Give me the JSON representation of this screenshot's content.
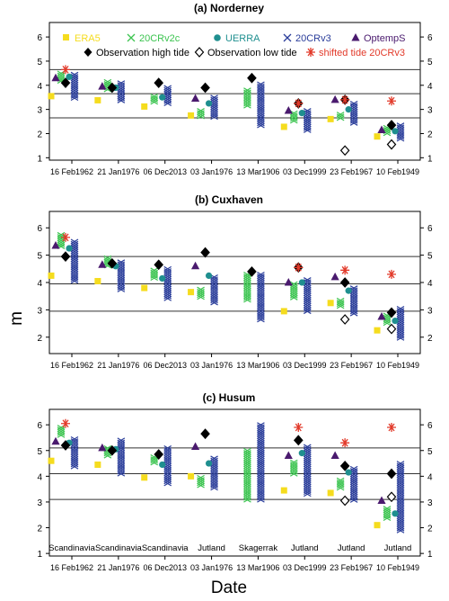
{
  "figure": {
    "ylabel": "m",
    "xlabel": "Date",
    "legend": [
      {
        "label": "ERA5",
        "color": "#f5dc1e",
        "marker": "square"
      },
      {
        "label": "20CRv2c",
        "color": "#3cc450",
        "marker": "x"
      },
      {
        "label": "UERRA",
        "color": "#1f8f8f",
        "marker": "circle"
      },
      {
        "label": "20CRv3",
        "color": "#2a3d9a",
        "marker": "x"
      },
      {
        "label": "OptempS",
        "color": "#4a1a6e",
        "marker": "triangle"
      },
      {
        "label": "Observation high tide",
        "color": "#000000",
        "marker": "diamond-filled"
      },
      {
        "label": "Observation low tide",
        "color": "#000000",
        "marker": "diamond-open"
      },
      {
        "label": "shifted tide 20CRv3",
        "color": "#e23a2a",
        "marker": "asterisk"
      }
    ],
    "categories": [
      "16 Feb1962",
      "21 Jan1976",
      "06 Dec2013",
      "03 Jan1976",
      "13 Mar1906",
      "03 Dec1999",
      "23 Feb1967",
      "10 Feb1949"
    ],
    "storm_tracks": [
      "Scandinavia",
      "Scandinavia",
      "Scandinavia",
      "Jutland",
      "Skagerrak",
      "Jutland",
      "Jutland",
      "Jutland"
    ]
  },
  "chart_data": [
    {
      "type": "scatter",
      "title": "(a) Norderney",
      "ylim": [
        0.9,
        6.6
      ],
      "yticks": [
        1,
        2,
        3,
        4,
        5,
        6
      ],
      "hlines": [
        2.65,
        3.65,
        4.65
      ],
      "series": {
        "era5": [
          3.55,
          3.38,
          3.12,
          2.75,
          null,
          2.28,
          2.6,
          1.88
        ],
        "v2c": [
          [
            4.15,
            4.5
          ],
          [
            3.75,
            4.15
          ],
          [
            3.3,
            3.55
          ],
          [
            2.7,
            2.95
          ],
          [
            3.1,
            3.8
          ],
          [
            2.45,
            2.85
          ],
          [
            2.6,
            2.8
          ],
          [
            2.0,
            2.25
          ]
        ],
        "uerra": [
          4.35,
          3.9,
          3.5,
          3.25,
          null,
          2.85,
          3.0,
          2.1
        ],
        "v3": [
          [
            3.45,
            4.45
          ],
          [
            3.3,
            4.1
          ],
          [
            3.2,
            3.9
          ],
          [
            2.6,
            3.5
          ],
          [
            2.3,
            4.05
          ],
          [
            2.1,
            2.95
          ],
          [
            2.4,
            3.25
          ],
          [
            1.7,
            2.35
          ]
        ],
        "optemps": [
          4.3,
          3.95,
          null,
          3.45,
          null,
          2.95,
          3.4,
          2.15
        ],
        "obs_high": [
          4.1,
          3.9,
          4.1,
          3.9,
          4.3,
          3.25,
          3.4,
          2.35
        ],
        "obs_low": [
          null,
          null,
          null,
          null,
          null,
          null,
          1.3,
          1.55
        ],
        "shifted": [
          4.65,
          null,
          null,
          null,
          null,
          3.25,
          3.4,
          3.35
        ]
      }
    },
    {
      "type": "scatter",
      "title": "(b) Cuxhaven",
      "ylim": [
        1.4,
        6.6
      ],
      "yticks": [
        2,
        3,
        4,
        5,
        6
      ],
      "hlines": [
        2.95,
        3.95,
        4.95
      ],
      "series": {
        "era5": [
          4.25,
          4.05,
          3.8,
          3.65,
          null,
          2.95,
          3.25,
          2.25
        ],
        "v2c": [
          [
            5.3,
            5.75
          ],
          [
            4.55,
            4.9
          ],
          [
            4.15,
            4.45
          ],
          [
            3.4,
            3.75
          ],
          [
            3.3,
            4.3
          ],
          [
            3.4,
            3.95
          ],
          [
            3.1,
            3.35
          ],
          [
            2.45,
            2.8
          ]
        ],
        "uerra": [
          5.25,
          4.6,
          4.15,
          4.25,
          null,
          4.0,
          3.7,
          2.6
        ],
        "v3": [
          [
            4.05,
            5.5
          ],
          [
            3.7,
            4.75
          ],
          [
            3.4,
            4.5
          ],
          [
            3.2,
            4.2
          ],
          [
            2.6,
            4.3
          ],
          [
            2.9,
            4.1
          ],
          [
            2.8,
            3.8
          ],
          [
            1.9,
            3.05
          ]
        ],
        "optemps": [
          5.35,
          4.65,
          null,
          4.6,
          null,
          4.0,
          4.2,
          2.75
        ],
        "obs_high": [
          4.95,
          4.7,
          4.65,
          5.1,
          4.4,
          4.55,
          4.0,
          2.9
        ],
        "obs_low": [
          null,
          null,
          null,
          null,
          null,
          null,
          2.65,
          2.3
        ],
        "shifted": [
          5.65,
          null,
          null,
          null,
          null,
          4.55,
          4.45,
          4.3
        ]
      }
    },
    {
      "type": "scatter",
      "title": "(c) Husum",
      "ylim": [
        0.9,
        6.6
      ],
      "yticks": [
        1,
        2,
        3,
        4,
        5,
        6
      ],
      "hlines": [
        3.1,
        4.1,
        5.1
      ],
      "series": {
        "era5": [
          4.6,
          4.45,
          3.95,
          4.0,
          null,
          3.45,
          3.35,
          2.1
        ],
        "v2c": [
          [
            5.55,
            5.9
          ],
          [
            4.75,
            5.1
          ],
          [
            4.45,
            4.75
          ],
          [
            3.6,
            3.95
          ],
          [
            3.05,
            5.0
          ],
          [
            4.05,
            4.55
          ],
          [
            3.5,
            3.85
          ],
          [
            2.3,
            2.75
          ]
        ],
        "uerra": [
          5.3,
          5.05,
          4.45,
          4.5,
          null,
          4.9,
          4.15,
          2.55
        ],
        "v3": [
          [
            4.35,
            5.45
          ],
          [
            4.05,
            5.4
          ],
          [
            3.7,
            5.1
          ],
          [
            3.5,
            4.7
          ],
          [
            3.0,
            6.0
          ],
          [
            3.3,
            5.15
          ],
          [
            3.0,
            4.3
          ],
          [
            1.85,
            4.5
          ]
        ],
        "optemps": [
          5.35,
          5.1,
          null,
          5.15,
          null,
          4.8,
          4.8,
          3.05
        ],
        "obs_high": [
          5.2,
          5.0,
          4.85,
          5.65,
          null,
          5.4,
          4.4,
          4.1
        ],
        "obs_low": [
          null,
          null,
          null,
          null,
          null,
          null,
          3.05,
          3.2
        ],
        "shifted": [
          6.05,
          null,
          null,
          null,
          null,
          5.9,
          5.3,
          5.9
        ]
      }
    }
  ]
}
